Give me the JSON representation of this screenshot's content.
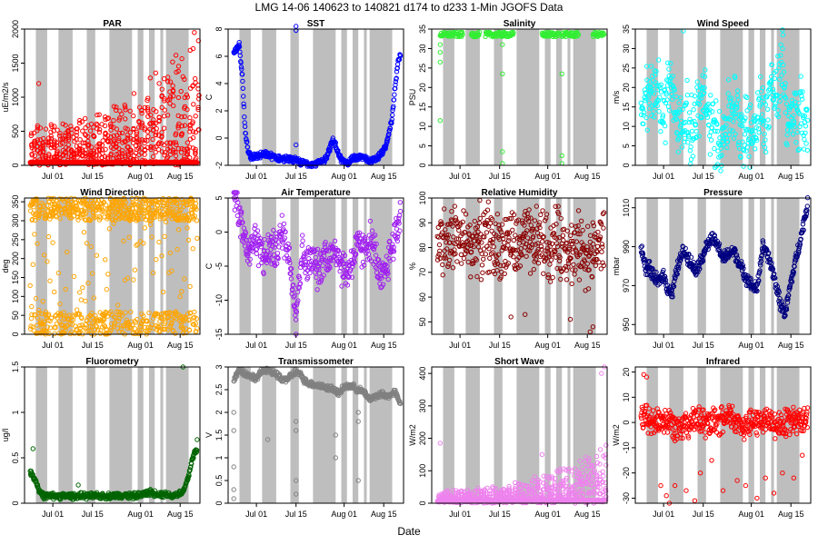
{
  "figure": {
    "title": "LMG   14-06    140623 to 140821    d174 to d233   1-Min  JGOFS Data",
    "xlabel": "Date"
  },
  "shading_days": [
    [
      176,
      180
    ],
    [
      184,
      189
    ],
    [
      194,
      197
    ],
    [
      202,
      210
    ],
    [
      212,
      214
    ],
    [
      216,
      218
    ],
    [
      220,
      221
    ],
    [
      222,
      230
    ]
  ],
  "chart_data": [
    {
      "type": "scatter",
      "title": "PAR",
      "ylabel": "uE/m2/s",
      "color": "#ff0000",
      "ylim": [
        0,
        2000
      ],
      "yticks": [
        0,
        500,
        1000,
        1500,
        2000
      ],
      "xlim": [
        172,
        234
      ],
      "xticks": [
        182,
        196,
        213,
        227
      ],
      "xticklabels": [
        "Jul 01",
        "Jul 15",
        "Aug 01",
        "Aug 15"
      ],
      "x_range": [
        174,
        233
      ],
      "base": 30,
      "amp": 20,
      "spike": 600,
      "spike_growth": 1400,
      "outliers": [
        [
          177,
          1200
        ],
        [
          228,
          1300
        ],
        [
          232,
          1950
        ]
      ]
    },
    {
      "type": "scatter",
      "title": "SST",
      "ylabel": "C",
      "color": "#0000ff",
      "ylim": [
        -2,
        8
      ],
      "yticks": [
        -2,
        0,
        2,
        4,
        6,
        8
      ],
      "xlim": [
        172,
        234
      ],
      "xticks": [
        182,
        196,
        213,
        227
      ],
      "xticklabels": [
        "Jul 01",
        "Jul 15",
        "Aug 01",
        "Aug 15"
      ],
      "series": [
        {
          "x": [
            174,
            175,
            176,
            177,
            178,
            179,
            180,
            182,
            186,
            190,
            195,
            198,
            202,
            204,
            206,
            209,
            210,
            211,
            212,
            214,
            216,
            220,
            222,
            224,
            226,
            228,
            230,
            231,
            232,
            233
          ],
          "y": [
            6.2,
            6.5,
            6.8,
            4.5,
            0.5,
            -0.8,
            -1.4,
            -1.3,
            -1.2,
            -1.5,
            -1.6,
            -1.8,
            -1.9,
            -1.8,
            -1.7,
            -0.2,
            -0.5,
            -1.2,
            -1.6,
            -1.8,
            -1.5,
            -1.4,
            -1.7,
            -1.6,
            -1.2,
            -0.5,
            1.5,
            3.8,
            5.5,
            6.2
          ]
        }
      ],
      "outliers": [
        [
          196,
          8.2
        ],
        [
          196,
          7.9
        ],
        [
          196,
          -0.5
        ]
      ]
    },
    {
      "type": "scatter",
      "title": "Salinity",
      "ylabel": "PSU",
      "color": "#33ee33",
      "ylim": [
        0,
        35
      ],
      "yticks": [
        0,
        5,
        10,
        15,
        20,
        25,
        30,
        35
      ],
      "xlim": [
        172,
        234
      ],
      "xticks": [
        182,
        196,
        213,
        227
      ],
      "xticklabels": [
        "Jul 01",
        "Jul 15",
        "Aug 01",
        "Aug 15"
      ],
      "segments": [
        [
          175,
          183
        ],
        [
          186,
          189
        ],
        [
          191,
          201
        ],
        [
          211,
          217
        ],
        [
          218,
          224
        ],
        [
          229,
          233
        ]
      ],
      "level": 33.6,
      "outliers": [
        [
          175,
          11.5
        ],
        [
          175,
          26.5
        ],
        [
          175,
          29
        ],
        [
          197,
          0.5
        ],
        [
          197,
          3.5
        ],
        [
          197,
          23.5
        ],
        [
          197,
          31
        ],
        [
          218,
          0.5
        ],
        [
          218,
          2.5
        ],
        [
          218,
          23.5
        ],
        [
          175,
          31
        ]
      ]
    },
    {
      "type": "scatter",
      "title": "Wind Speed",
      "ylabel": "m/s",
      "color": "#00ffff",
      "ylim": [
        0,
        35
      ],
      "yticks": [
        0,
        5,
        10,
        15,
        20,
        25,
        30,
        35
      ],
      "xlim": [
        172,
        234
      ],
      "xticks": [
        182,
        196,
        213,
        227
      ],
      "xticklabels": [
        "Jul 01",
        "Jul 15",
        "Aug 01",
        "Aug 15"
      ],
      "series": [
        {
          "x": [
            174,
            176,
            178,
            180,
            182,
            184,
            186,
            188,
            190,
            192,
            194,
            196,
            198,
            200,
            202,
            204,
            206,
            208,
            210,
            212,
            214,
            216,
            218,
            220,
            222,
            224,
            226,
            228,
            230,
            232,
            233
          ],
          "y": [
            12,
            16,
            20,
            18,
            14,
            22,
            15,
            10,
            12,
            9,
            14,
            17,
            12,
            8,
            7,
            10,
            16,
            13,
            10,
            8,
            9,
            15,
            11,
            22,
            16,
            28,
            9,
            12,
            14,
            11,
            10
          ]
        }
      ],
      "band": 8,
      "outliers": [
        [
          189,
          34.5
        ],
        [
          224,
          34.8
        ]
      ]
    },
    {
      "type": "scatter",
      "title": "Wind Direction",
      "ylabel": "deg",
      "color": "#ffa500",
      "ylim": [
        0,
        360
      ],
      "yticks": [
        0,
        50,
        100,
        150,
        200,
        250,
        300,
        350
      ],
      "xlim": [
        172,
        234
      ],
      "xticks": [
        182,
        196,
        213,
        227
      ],
      "xticklabels": [
        "Jul 01",
        "Jul 15",
        "Aug 01",
        "Aug 15"
      ],
      "x_range": [
        174,
        233
      ],
      "mode": "fill"
    },
    {
      "type": "scatter",
      "title": "Air Temperature",
      "ylabel": "C",
      "color": "#a020f0",
      "ylim": [
        -15,
        5
      ],
      "yticks": [
        -15,
        -10,
        -5,
        0,
        5
      ],
      "xlim": [
        172,
        234
      ],
      "xticks": [
        182,
        196,
        213,
        227
      ],
      "xticklabels": [
        "Jul 01",
        "Jul 15",
        "Aug 01",
        "Aug 15"
      ],
      "series": [
        {
          "x": [
            174,
            175,
            177,
            179,
            181,
            183,
            185,
            187,
            189,
            191,
            193,
            195,
            196,
            198,
            200,
            202,
            204,
            206,
            208,
            210,
            212,
            214,
            216,
            218,
            220,
            222,
            224,
            226,
            228,
            230,
            232,
            233
          ],
          "y": [
            6,
            5,
            1,
            -3,
            -1,
            -2,
            -4,
            -2,
            -3,
            0,
            -2,
            -8,
            -12,
            -3,
            -5,
            -4,
            -6,
            -3,
            -4,
            -2,
            -5,
            -6,
            -4,
            -2,
            -3,
            -1,
            -3,
            -8,
            -5,
            -2,
            1,
            3
          ]
        }
      ],
      "band": 2.5,
      "outliers": [
        [
          196,
          -15
        ]
      ]
    },
    {
      "type": "scatter",
      "title": "Relative Humidity",
      "ylabel": "%",
      "color": "#8b0000",
      "ylim": [
        45,
        100
      ],
      "yticks": [
        50,
        60,
        70,
        80,
        90,
        100
      ],
      "xlim": [
        172,
        234
      ],
      "xticks": [
        182,
        196,
        213,
        227
      ],
      "xticklabels": [
        "Jul 01",
        "Jul 15",
        "Aug 01",
        "Aug 15"
      ],
      "series": [
        {
          "x": [
            174,
            176,
            178,
            180,
            182,
            184,
            186,
            188,
            190,
            192,
            194,
            196,
            198,
            200,
            202,
            204,
            206,
            208,
            210,
            212,
            214,
            216,
            218,
            220,
            222,
            224,
            226,
            228,
            230,
            232,
            233
          ],
          "y": [
            82,
            84,
            80,
            86,
            83,
            82,
            80,
            84,
            81,
            85,
            79,
            82,
            80,
            84,
            78,
            83,
            82,
            80,
            84,
            81,
            79,
            83,
            80,
            82,
            78,
            80,
            79,
            76,
            80,
            82,
            83
          ]
        }
      ],
      "band": 12,
      "outliers": [
        [
          200,
          52
        ],
        [
          205,
          53
        ],
        [
          221,
          51
        ],
        [
          228,
          46
        ],
        [
          229,
          48
        ]
      ]
    },
    {
      "type": "scatter",
      "title": "Pressure",
      "ylabel": "mbar",
      "color": "#000080",
      "ylim": [
        945,
        1015
      ],
      "yticks": [
        950,
        970,
        990,
        1010
      ],
      "xlim": [
        172,
        234
      ],
      "xticks": [
        182,
        196,
        213,
        227
      ],
      "xticklabels": [
        "Jul 01",
        "Jul 15",
        "Aug 01",
        "Aug 15"
      ],
      "series": [
        {
          "x": [
            174,
            175,
            176,
            177,
            178,
            180,
            182,
            183,
            185,
            187,
            189,
            191,
            193,
            195,
            197,
            199,
            201,
            203,
            205,
            207,
            209,
            211,
            213,
            215,
            217,
            219,
            221,
            223,
            225,
            227,
            229,
            231,
            232,
            233
          ],
          "y": [
            990,
            983,
            978,
            980,
            975,
            972,
            976,
            970,
            966,
            980,
            988,
            984,
            978,
            982,
            990,
            994,
            991,
            984,
            986,
            988,
            980,
            975,
            970,
            968,
            990,
            985,
            975,
            962,
            955,
            972,
            985,
            998,
            1006,
            1012
          ]
        }
      ],
      "band": 3
    },
    {
      "type": "scatter",
      "title": "Fluorometry",
      "ylabel": "ug/l",
      "color": "#006400",
      "ylim": [
        0,
        1.5
      ],
      "yticks": [
        0,
        0.5,
        1,
        1.5
      ],
      "xlim": [
        172,
        234
      ],
      "xticks": [
        182,
        196,
        213,
        227
      ],
      "xticklabels": [
        "Jul 01",
        "Jul 15",
        "Aug 01",
        "Aug 15"
      ],
      "series": [
        {
          "x": [
            174,
            175,
            176,
            177,
            178,
            179,
            180,
            182,
            186,
            191,
            195,
            202,
            206,
            211,
            214,
            216,
            220,
            222,
            224,
            226,
            228,
            229,
            230,
            231,
            232,
            233
          ],
          "y": [
            0.35,
            0.3,
            0.25,
            0.15,
            0.1,
            0.08,
            0.08,
            0.08,
            0.08,
            0.08,
            0.08,
            0.08,
            0.09,
            0.08,
            0.1,
            0.12,
            0.1,
            0.1,
            0.08,
            0.1,
            0.12,
            0.2,
            0.3,
            0.45,
            0.55,
            0.6
          ]
        }
      ],
      "outliers": [
        [
          175,
          0.6
        ],
        [
          191,
          0.2
        ],
        [
          228,
          1.5
        ],
        [
          233,
          0.7
        ]
      ]
    },
    {
      "type": "scatter",
      "title": "Transmissometer",
      "ylabel": "V",
      "color": "#808080",
      "ylim": [
        0,
        3
      ],
      "yticks": [
        0,
        0.5,
        1,
        1.5,
        2,
        2.5,
        3
      ],
      "xlim": [
        172,
        234
      ],
      "xticks": [
        182,
        196,
        213,
        227
      ],
      "xticklabels": [
        "Jul 01",
        "Jul 15",
        "Aug 01",
        "Aug 15"
      ],
      "series": [
        {
          "x": [
            174,
            176,
            178,
            180,
            182,
            184,
            186,
            188,
            190,
            191,
            193,
            196,
            198,
            199,
            200,
            210,
            211,
            213,
            215,
            218,
            220,
            222,
            224,
            226,
            228,
            230,
            231,
            232,
            233
          ],
          "y": [
            2.7,
            2.95,
            2.85,
            2.8,
            2.75,
            2.9,
            2.95,
            2.85,
            2.8,
            2.7,
            2.75,
            2.9,
            2.8,
            2.7,
            2.65,
            2.5,
            2.4,
            2.55,
            2.6,
            2.5,
            2.45,
            2.3,
            2.35,
            2.4,
            2.35,
            2.4,
            2.45,
            2.3,
            2.2
          ]
        }
      ],
      "outliers": [
        [
          174,
          0.1
        ],
        [
          174,
          0.3
        ],
        [
          174,
          0.8
        ],
        [
          174,
          1.6
        ],
        [
          174,
          2.0
        ],
        [
          186,
          1.4
        ],
        [
          196,
          0.2
        ],
        [
          196,
          0.5
        ],
        [
          196,
          1.6
        ],
        [
          196,
          1.8
        ],
        [
          210,
          1.0
        ],
        [
          210,
          1.5
        ],
        [
          218,
          0.5
        ],
        [
          218,
          1.8
        ],
        [
          218,
          2.0
        ]
      ]
    },
    {
      "type": "scatter",
      "title": "Short Wave",
      "ylabel": "W/m2",
      "color": "#ee82ee",
      "ylim": [
        0,
        420
      ],
      "yticks": [
        0,
        100,
        200,
        300,
        400
      ],
      "xlim": [
        172,
        234
      ],
      "xticks": [
        182,
        196,
        213,
        227
      ],
      "xticklabels": [
        "Jul 01",
        "Jul 15",
        "Aug 01",
        "Aug 15"
      ],
      "x_range": [
        174,
        233
      ],
      "base": 5,
      "amp": 6,
      "spike": 40,
      "spike_growth": 140,
      "outliers": [
        [
          175,
          185
        ],
        [
          211,
          150
        ],
        [
          232,
          400
        ],
        [
          233,
          420
        ]
      ]
    },
    {
      "type": "scatter",
      "title": "Infrared",
      "ylabel": "W/m2",
      "color": "#ff0000",
      "ylim": [
        -32,
        22
      ],
      "yticks": [
        -30,
        -20,
        -10,
        0,
        10,
        20
      ],
      "xlim": [
        172,
        234
      ],
      "xticks": [
        182,
        196,
        213,
        227
      ],
      "xticklabels": [
        "Jul 01",
        "Jul 15",
        "Aug 01",
        "Aug 15"
      ],
      "series": [
        {
          "x": [
            174,
            178,
            182,
            186,
            190,
            194,
            198,
            202,
            206,
            210,
            214,
            218,
            222,
            226,
            230,
            233
          ],
          "y": [
            2,
            0,
            1,
            -1,
            0,
            1,
            -1,
            0,
            2,
            -1,
            0,
            1,
            -1,
            0,
            1,
            0
          ]
        }
      ],
      "band": 5,
      "outliers": [
        [
          175,
          19
        ],
        [
          176,
          18
        ],
        [
          181,
          -25
        ],
        [
          183,
          -29
        ],
        [
          184,
          -32
        ],
        [
          186,
          -25
        ],
        [
          190,
          -27
        ],
        [
          193,
          -31
        ],
        [
          195,
          -20
        ],
        [
          199,
          -15
        ],
        [
          203,
          -27
        ],
        [
          208,
          -23
        ],
        [
          211,
          -25
        ],
        [
          215,
          -30
        ],
        [
          218,
          -22
        ],
        [
          221,
          -28
        ],
        [
          224,
          -20
        ],
        [
          228,
          -22
        ],
        [
          231,
          -13
        ]
      ]
    }
  ]
}
